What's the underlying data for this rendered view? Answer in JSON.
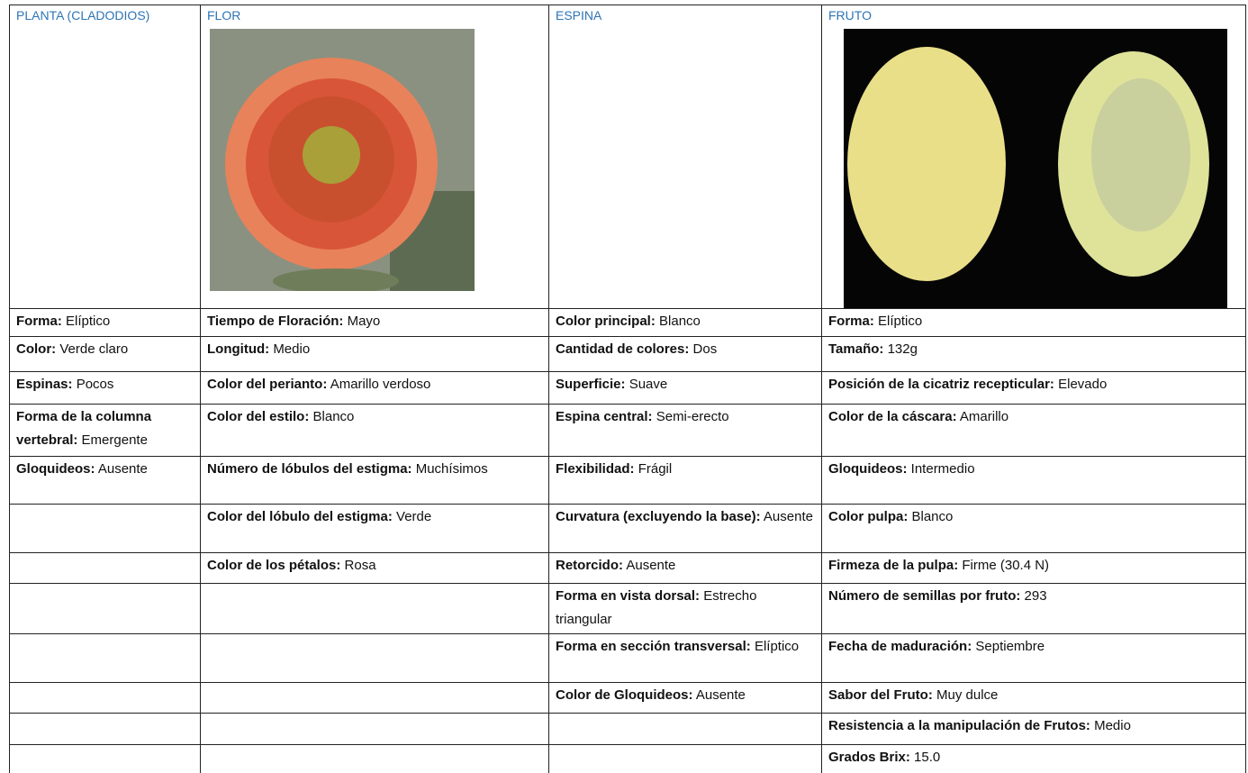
{
  "columns": [
    {
      "header": "PLANTA (CLADODIOS)",
      "items": [
        {
          "label": "Forma:",
          "value": "Elíptico"
        },
        {
          "label": "Color:",
          "value": "Verde claro"
        },
        {
          "label": "Espinas:",
          "value": "Pocos"
        },
        {
          "label": "Forma de la columna vertebral:",
          "value": "Emergente"
        },
        {
          "label": "Gloquideos:",
          "value": "Ausente"
        }
      ]
    },
    {
      "header": "FLOR",
      "items": [
        {
          "label": "Tiempo de Floración:",
          "value": "Mayo"
        },
        {
          "label": "Longitud:",
          "value": "Medio"
        },
        {
          "label": "Color del perianto:",
          "value": "Amarillo verdoso"
        },
        {
          "label": "Color del estilo:",
          "value": "Blanco"
        },
        {
          "label": "Número de lóbulos del estigma:",
          "value": "Muchísimos"
        },
        {
          "label": "Color del lóbulo del estigma:",
          "value": "Verde"
        },
        {
          "label": "Color de los pétalos:",
          "value": "Rosa"
        }
      ]
    },
    {
      "header": "ESPINA",
      "items": [
        {
          "label": "Color principal:",
          "value": "Blanco"
        },
        {
          "label": "Cantidad de colores:",
          "value": "Dos"
        },
        {
          "label": "Superficie:",
          "value": "Suave"
        },
        {
          "label": "Espina central:",
          "value": "Semi-erecto"
        },
        {
          "label": "Flexibilidad:",
          "value": "Frágil"
        },
        {
          "label": "Curvatura (excluyendo la base):",
          "value": "Ausente"
        },
        {
          "label": "Retorcido:",
          "value": "Ausente"
        },
        {
          "label": "Forma en vista dorsal:",
          "value": "Estrecho triangular"
        },
        {
          "label": "Forma en sección transversal:",
          "value": "Elíptico"
        },
        {
          "label": "Color de Gloquideos:",
          "value": "Ausente"
        }
      ]
    },
    {
      "header": "FRUTO",
      "items": [
        {
          "label": "Forma:",
          "value": "Elíptico"
        },
        {
          "label": "Tamaño:",
          "value": "132g"
        },
        {
          "label": "Posición de la cicatriz recepticular:",
          "value": "Elevado"
        },
        {
          "label": "Color de la cáscara:",
          "value": "Amarillo"
        },
        {
          "label": "Gloquideos:",
          "value": "Intermedio"
        },
        {
          "label": "Color pulpa:",
          "value": "Blanco"
        },
        {
          "label": "Firmeza de la pulpa:",
          "value": "Firme (30.4 N)"
        },
        {
          "label": "Número de semillas por fruto:",
          "value": "293"
        },
        {
          "label": "Fecha de maduración:",
          "value": "Septiembre"
        },
        {
          "label": "Sabor del Fruto:",
          "value": "Muy dulce"
        },
        {
          "label": "Resistencia a la manipulación de Frutos:",
          "value": "Medio"
        },
        {
          "label": "Grados Brix:",
          "value": "15.0"
        }
      ]
    }
  ]
}
